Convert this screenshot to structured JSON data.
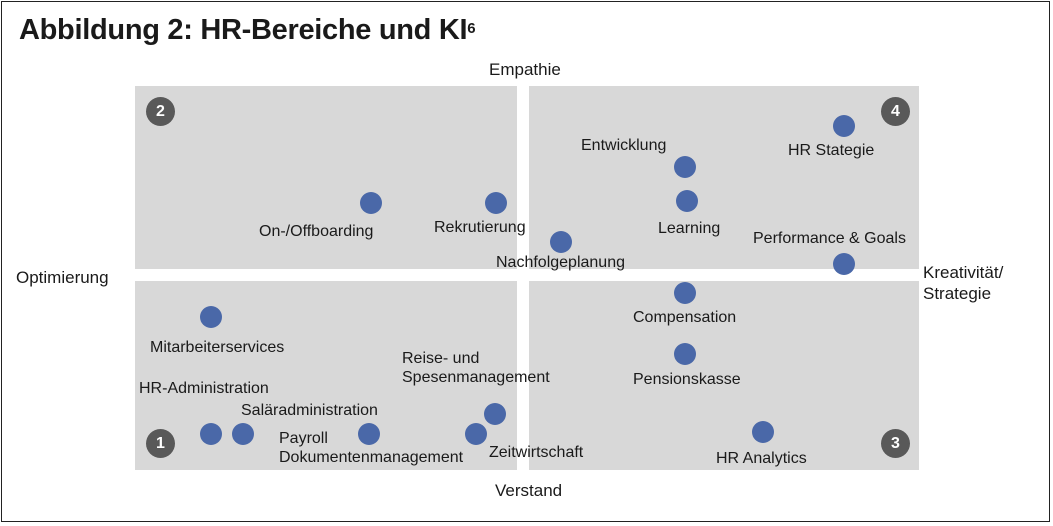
{
  "figure": {
    "title": "Abbildung 2: HR-Bereiche und KI",
    "title_footnote": "6"
  },
  "axes": {
    "top": "Empathie",
    "bottom": "Verstand",
    "left": "Optimierung",
    "right_line1": "Kreativität/",
    "right_line2": "Strategie"
  },
  "quadrant_numbers": [
    "1",
    "2",
    "3",
    "4"
  ],
  "items": {
    "onboarding": "On-/Offboarding",
    "rekrutierung": "Rekrutierung",
    "entwicklung": "Entwicklung",
    "learning": "Learning",
    "nachfolge": "Nachfolgeplanung",
    "hr_strategie": "HR Stategie",
    "performance": "Performance & Goals",
    "mitarbeiterservices": "Mitarbeiterservices",
    "hr_administration": "HR-Administration",
    "salaradministration": "Saläradministration",
    "payroll_line1": "Payroll",
    "payroll_line2": "Dokumentenmanagement",
    "reise_line1": "Reise- und",
    "reise_line2": "Spesenmanagement",
    "zeitwirtschaft": "Zeitwirtschaft",
    "compensation": "Compensation",
    "pensionskasse": "Pensionskasse",
    "hr_analytics": "HR Analytics"
  },
  "colors": {
    "dot": "#4a68a8",
    "quadrant_fill": "#d8d8d8",
    "badge": "#595959"
  }
}
